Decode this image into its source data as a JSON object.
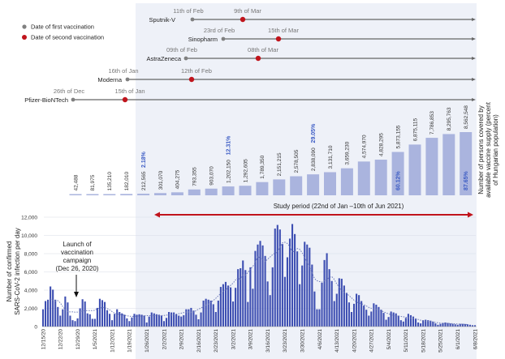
{
  "legend": {
    "first": "Date of first vaccination",
    "second": "Date of second vaccination"
  },
  "colors": {
    "first_dot": "#808080",
    "second_dot": "#c0141c",
    "shade": "#eef1f8",
    "daily_bar": "#3e4fb2",
    "weekly_bar": "#aab4de",
    "percent_text": "#3b5bc4",
    "study_arrow": "#c0141c"
  },
  "vaccines": [
    {
      "name": "Sputnik-V",
      "first": "11th of Feb",
      "second": "9th of Mar"
    },
    {
      "name": "Sinopharm",
      "first": "23rd of Feb",
      "second": "15th of Mar"
    },
    {
      "name": "AstraZeneca",
      "first": "09th of Feb",
      "second": "08th of Mar"
    },
    {
      "name": "Moderna",
      "first": "16th of Jan",
      "second": "12th of Feb"
    },
    {
      "name": "Pfizer-BioNTech",
      "first": "26th of Dec",
      "second": "15th of Jan"
    }
  ],
  "chart_data": [
    {
      "type": "bar",
      "ylabel": "Number of persons covered by available vaccine supply (percent of Hungarian population)",
      "values": [
        42488,
        81975,
        135210,
        182010,
        212565,
        301070,
        404275,
        793355,
        903070,
        1202150,
        1292605,
        1789350,
        2151215,
        2578505,
        2838090,
        3131710,
        3659230,
        4574970,
        4828295,
        5873155,
        6875115,
        7786853,
        8295763,
        8562548
      ],
      "labels": [
        "42,488",
        "81,975",
        "135,210",
        "182,010",
        "212,565",
        "301,070",
        "404,275",
        "793,355",
        "903,070",
        "1,202,150",
        "1,292,605",
        "1,789,350",
        "2,151,215",
        "2,578,505",
        "2,838,090",
        "3,131,710",
        "3,659,230",
        "4,574,970",
        "4,828,295",
        "5,873,155",
        "6,875,115",
        "7,786,853",
        "8,295,763",
        "8,562,548"
      ],
      "percent_annotations": [
        {
          "bar": 5,
          "text": "2.18%"
        },
        {
          "bar": 10,
          "text": "12.31%"
        },
        {
          "bar": 15,
          "text": "29.05%"
        },
        {
          "bar": 20,
          "text": "60.12%"
        },
        {
          "bar": 24,
          "text": "87.65%"
        }
      ]
    },
    {
      "type": "bar",
      "ylabel": "Number of confirmed SARS-CoV-2 infection per day",
      "ylim": [
        0,
        12000
      ],
      "yticks": [
        "0",
        "2,000",
        "4,000",
        "6,000",
        "8,000",
        "10,000",
        "12,000"
      ],
      "xticks": [
        "12/15/20",
        "12/22/20",
        "12/29/20",
        "1/5/2021",
        "1/12/2021",
        "1/19/2021",
        "1/26/2021",
        "2/2/2021",
        "2/9/2021",
        "2/16/2021",
        "2/23/2021",
        "3/2/2021",
        "3/9/2021",
        "3/16/2021",
        "3/23/2021",
        "3/30/2021",
        "4/6/2021",
        "4/13/2021",
        "4/20/2021",
        "4/27/2021",
        "5/4/2021",
        "5/11/2021",
        "5/18/2021",
        "5/25/2021",
        "6/1/2021",
        "6/8/2021"
      ],
      "x_start": "12/15/20",
      "values": [
        1900,
        2800,
        2950,
        4400,
        4050,
        2950,
        2150,
        1200,
        1900,
        3300,
        2650,
        1200,
        700,
        600,
        900,
        2000,
        3000,
        2750,
        1450,
        1350,
        850,
        850,
        2050,
        3050,
        2900,
        2700,
        1800,
        1400,
        700,
        1400,
        1900,
        1600,
        1450,
        1300,
        900,
        600,
        1000,
        1400,
        1300,
        1350,
        1300,
        1200,
        450,
        1100,
        1550,
        1450,
        1350,
        1300,
        1200,
        600,
        950,
        1600,
        1550,
        1550,
        1350,
        1200,
        1100,
        1250,
        1900,
        1900,
        2050,
        1750,
        1300,
        800,
        1550,
        2850,
        3050,
        2950,
        2850,
        2450,
        1600,
        2850,
        4350,
        4650,
        4900,
        4500,
        4300,
        2750,
        4250,
        6300,
        6400,
        7250,
        6200,
        2700,
        6500,
        4150,
        8300,
        9000,
        9400,
        8900,
        7750,
        4950,
        3450,
        6500,
        10750,
        11150,
        10650,
        9050,
        5450,
        7600,
        9650,
        11250,
        10150,
        8250,
        4650,
        6700,
        9300,
        9000,
        8650,
        6800,
        3850,
        1900,
        1900,
        4800,
        7300,
        8050,
        6300,
        5000,
        2800,
        3600,
        5300,
        5250,
        4500,
        3700,
        2650,
        1600,
        2500,
        3600,
        3450,
        2800,
        2300,
        1850,
        1200,
        1650,
        2550,
        2400,
        2150,
        1850,
        1500,
        750,
        1050,
        1650,
        1550,
        1450,
        1200,
        700,
        550,
        950,
        1400,
        1250,
        1100,
        850,
        450,
        350,
        700,
        750,
        700,
        650,
        550,
        350,
        200,
        300,
        400,
        450,
        400,
        350,
        300,
        250,
        200,
        300,
        300,
        280,
        250,
        200,
        150,
        150
      ],
      "trendline": "dotted moving average",
      "grid": true,
      "annotations": {
        "launch": [
          "Launch of",
          "vaccination",
          "campaign",
          "(Dec 26, 2020)"
        ],
        "study_period": "Study period (22nd of Jan –10th of Jun 2021)"
      }
    }
  ]
}
